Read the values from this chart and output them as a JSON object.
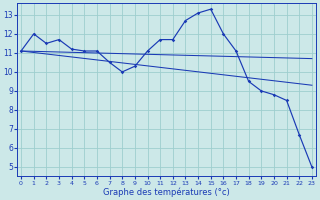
{
  "xlabel": "Graphe des températures (°c)",
  "bg_color": "#cce8e8",
  "line_color": "#1a3ab5",
  "grid_color": "#9ecece",
  "ylim": [
    4.5,
    13.6
  ],
  "xlim": [
    -0.3,
    23.3
  ],
  "yticks": [
    5,
    6,
    7,
    8,
    9,
    10,
    11,
    12,
    13
  ],
  "xticks": [
    0,
    1,
    2,
    3,
    4,
    5,
    6,
    7,
    8,
    9,
    10,
    11,
    12,
    13,
    14,
    15,
    16,
    17,
    18,
    19,
    20,
    21,
    22,
    23
  ],
  "series1_x": [
    0,
    1,
    2,
    3,
    4,
    5,
    6,
    7,
    8,
    9,
    10,
    11,
    12,
    13,
    14,
    15,
    16,
    17,
    18,
    19,
    20,
    21,
    22,
    23
  ],
  "series1_y": [
    11.1,
    12.0,
    11.5,
    11.7,
    11.2,
    11.1,
    11.1,
    10.5,
    10.0,
    10.3,
    11.1,
    11.7,
    11.7,
    12.7,
    13.1,
    13.3,
    12.0,
    11.1,
    9.5,
    9.0,
    8.8,
    8.5,
    6.7,
    5.0
  ],
  "trend1_x": [
    0,
    23
  ],
  "trend1_y": [
    11.1,
    10.7
  ],
  "trend2_x": [
    0,
    23
  ],
  "trend2_y": [
    11.1,
    9.3
  ],
  "tick_fontsize": 4.5,
  "xlabel_fontsize": 6.0,
  "ytick_fontsize": 5.5
}
